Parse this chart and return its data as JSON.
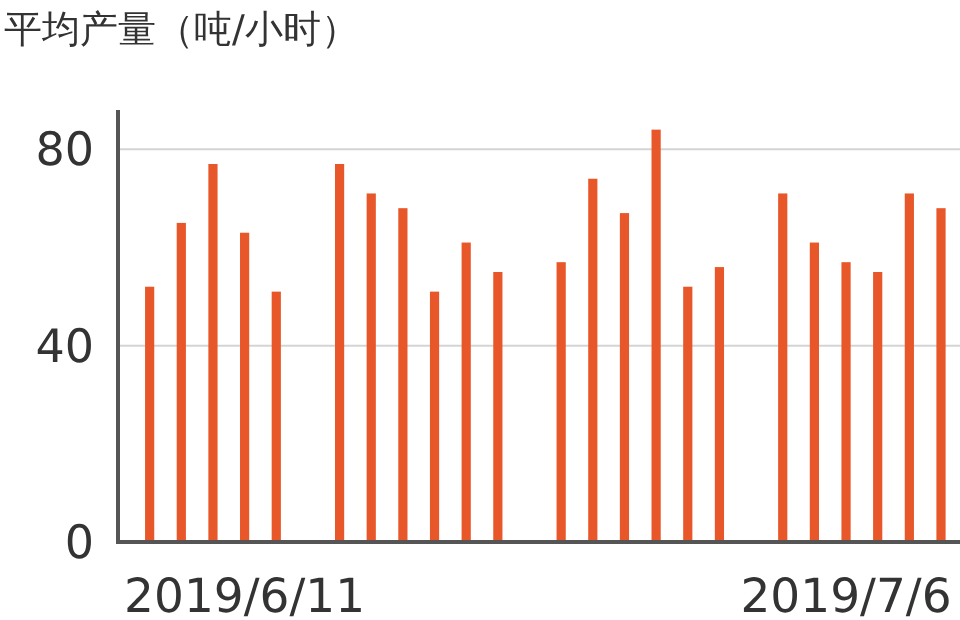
{
  "chart_data": {
    "type": "bar",
    "title": "平均产量（吨/小时）",
    "categories": [
      null,
      null,
      null,
      "2019/6/11",
      null,
      null,
      null,
      null,
      null,
      null,
      null,
      null,
      null,
      null,
      null,
      null,
      null,
      null,
      null,
      null,
      null,
      null,
      "2019/7/6",
      null,
      null,
      null
    ],
    "values": [
      52,
      65,
      77,
      63,
      51,
      null,
      77,
      71,
      68,
      51,
      61,
      55,
      null,
      57,
      74,
      67,
      84,
      52,
      56,
      null,
      71,
      61,
      57,
      55,
      71,
      68
    ],
    "color": "#e8572a",
    "ylim": [
      0,
      88
    ],
    "yticks": [
      0,
      40,
      80
    ],
    "grid": "y"
  }
}
